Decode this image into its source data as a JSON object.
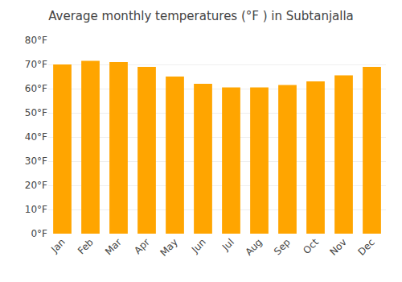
{
  "chart_data": {
    "type": "bar",
    "title": "Average monthly temperatures (°F ) in Subtanjalla",
    "categories": [
      "Jan",
      "Feb",
      "Mar",
      "Apr",
      "May",
      "Jun",
      "Jul",
      "Aug",
      "Sep",
      "Oct",
      "Nov",
      "Dec"
    ],
    "values": [
      70.0,
      71.5,
      71.0,
      69.0,
      65.0,
      62.0,
      60.5,
      60.5,
      61.5,
      63.0,
      65.5,
      69.0
    ],
    "color": "#FFA500",
    "ylim": [
      0,
      80
    ],
    "yticks": [
      {
        "value": 0,
        "label": "0°F"
      },
      {
        "value": 10,
        "label": "10°F"
      },
      {
        "value": 20,
        "label": "20°F"
      },
      {
        "value": 30,
        "label": "30°F"
      },
      {
        "value": 40,
        "label": "40°F"
      },
      {
        "value": 50,
        "label": "50°F"
      },
      {
        "value": 60,
        "label": "60°F"
      },
      {
        "value": 70,
        "label": "70°F"
      },
      {
        "value": 80,
        "label": "80°F"
      }
    ],
    "grid": true
  }
}
